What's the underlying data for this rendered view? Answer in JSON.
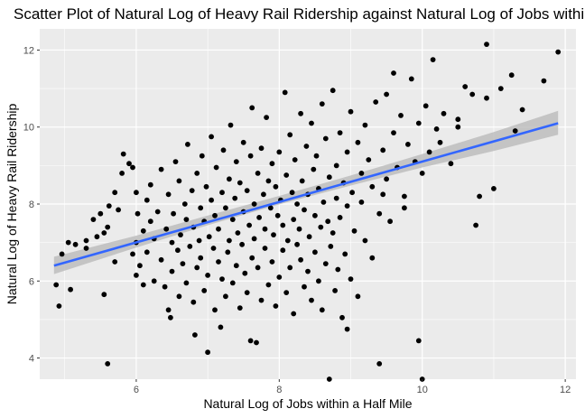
{
  "chart_data": {
    "type": "scatter",
    "title": "Scatter Plot of Natural Log of Heavy Rail Ridership against Natural Log of Jobs within a Half Mile",
    "xlabel": "Natural Log of Jobs within a Half Mile",
    "ylabel": "Natural Log of Heavy Rail Ridership",
    "xlim": [
      4.65,
      12.15
    ],
    "ylim": [
      3.45,
      12.55
    ],
    "xticks": [
      6,
      8,
      10,
      12
    ],
    "yticks": [
      4,
      6,
      8,
      10,
      12
    ],
    "grid": true,
    "legend": "none",
    "colors": {
      "panel": "#ebebeb",
      "grid": "#ffffff",
      "points": "#000000",
      "fit_line": "#3366ff",
      "confidence_band": "#bdbdbd"
    },
    "fit_line": {
      "x": [
        4.85,
        11.9
      ],
      "y": [
        6.4,
        10.1
      ]
    },
    "confidence_band": {
      "x": [
        4.85,
        6.0,
        7.0,
        8.0,
        9.0,
        10.0,
        11.0,
        11.9
      ],
      "lower": [
        6.18,
        6.87,
        7.45,
        7.99,
        8.48,
        8.95,
        9.38,
        9.8
      ],
      "upper": [
        6.63,
        7.18,
        7.7,
        8.21,
        8.74,
        9.3,
        9.87,
        10.42
      ]
    },
    "points": [
      [
        4.88,
        5.9
      ],
      [
        4.92,
        5.35
      ],
      [
        4.96,
        6.7
      ],
      [
        5.05,
        7.0
      ],
      [
        5.08,
        5.78
      ],
      [
        5.15,
        6.95
      ],
      [
        5.3,
        6.85
      ],
      [
        5.3,
        7.05
      ],
      [
        5.4,
        7.6
      ],
      [
        5.45,
        7.15
      ],
      [
        5.5,
        7.75
      ],
      [
        5.55,
        7.25
      ],
      [
        5.55,
        5.65
      ],
      [
        5.6,
        3.85
      ],
      [
        5.6,
        7.4
      ],
      [
        5.62,
        7.95
      ],
      [
        5.7,
        6.5
      ],
      [
        5.7,
        8.3
      ],
      [
        5.75,
        7.85
      ],
      [
        5.8,
        8.8
      ],
      [
        5.82,
        9.3
      ],
      [
        5.9,
        9.05
      ],
      [
        5.95,
        8.95
      ],
      [
        5.95,
        6.7
      ],
      [
        6.0,
        7.0
      ],
      [
        6.0,
        6.15
      ],
      [
        6.0,
        8.3
      ],
      [
        6.02,
        7.75
      ],
      [
        6.05,
        6.4
      ],
      [
        6.1,
        5.9
      ],
      [
        6.1,
        7.3
      ],
      [
        6.15,
        8.1
      ],
      [
        6.15,
        6.75
      ],
      [
        6.2,
        7.55
      ],
      [
        6.2,
        8.5
      ],
      [
        6.25,
        6.0
      ],
      [
        6.25,
        7.1
      ],
      [
        6.3,
        7.8
      ],
      [
        6.35,
        6.55
      ],
      [
        6.35,
        8.9
      ],
      [
        6.4,
        5.85
      ],
      [
        6.42,
        7.35
      ],
      [
        6.45,
        8.25
      ],
      [
        6.45,
        5.25
      ],
      [
        6.48,
        5.05
      ],
      [
        6.5,
        7.0
      ],
      [
        6.5,
        6.25
      ],
      [
        6.52,
        7.75
      ],
      [
        6.55,
        9.1
      ],
      [
        6.58,
        6.8
      ],
      [
        6.6,
        5.6
      ],
      [
        6.6,
        8.6
      ],
      [
        6.62,
        7.2
      ],
      [
        6.65,
        6.45
      ],
      [
        6.68,
        8.0
      ],
      [
        6.7,
        7.6
      ],
      [
        6.7,
        5.95
      ],
      [
        6.72,
        9.55
      ],
      [
        6.75,
        6.9
      ],
      [
        6.78,
        8.35
      ],
      [
        6.8,
        5.45
      ],
      [
        6.8,
        7.4
      ],
      [
        6.82,
        4.6
      ],
      [
        6.85,
        6.35
      ],
      [
        6.85,
        8.8
      ],
      [
        6.88,
        7.05
      ],
      [
        6.9,
        7.9
      ],
      [
        6.9,
        6.6
      ],
      [
        6.92,
        9.25
      ],
      [
        6.95,
        5.75
      ],
      [
        6.95,
        7.55
      ],
      [
        6.98,
        8.45
      ],
      [
        7.0,
        6.15
      ],
      [
        7.0,
        4.15
      ],
      [
        7.02,
        7.15
      ],
      [
        7.05,
        9.75
      ],
      [
        7.05,
        8.1
      ],
      [
        7.08,
        6.85
      ],
      [
        7.1,
        5.25
      ],
      [
        7.1,
        7.7
      ],
      [
        7.12,
        8.95
      ],
      [
        7.15,
        6.5
      ],
      [
        7.15,
        7.35
      ],
      [
        7.18,
        4.8
      ],
      [
        7.2,
        8.3
      ],
      [
        7.2,
        6.05
      ],
      [
        7.22,
        9.4
      ],
      [
        7.25,
        7.9
      ],
      [
        7.25,
        5.6
      ],
      [
        7.28,
        6.75
      ],
      [
        7.3,
        8.65
      ],
      [
        7.3,
        7.05
      ],
      [
        7.32,
        10.05
      ],
      [
        7.35,
        5.95
      ],
      [
        7.35,
        7.6
      ],
      [
        7.38,
        8.15
      ],
      [
        7.4,
        6.4
      ],
      [
        7.4,
        9.1
      ],
      [
        7.42,
        7.25
      ],
      [
        7.45,
        5.3
      ],
      [
        7.45,
        8.55
      ],
      [
        7.48,
        6.95
      ],
      [
        7.5,
        7.8
      ],
      [
        7.5,
        9.6
      ],
      [
        7.52,
        6.2
      ],
      [
        7.55,
        8.35
      ],
      [
        7.55,
        5.7
      ],
      [
        7.58,
        7.45
      ],
      [
        7.6,
        4.45
      ],
      [
        7.6,
        9.25
      ],
      [
        7.62,
        6.6
      ],
      [
        7.62,
        10.5
      ],
      [
        7.65,
        8.0
      ],
      [
        7.65,
        7.1
      ],
      [
        7.68,
        4.4
      ],
      [
        7.7,
        8.8
      ],
      [
        7.7,
        6.35
      ],
      [
        7.72,
        7.65
      ],
      [
        7.75,
        5.5
      ],
      [
        7.75,
        9.45
      ],
      [
        7.78,
        8.25
      ],
      [
        7.8,
        6.85
      ],
      [
        7.8,
        7.35
      ],
      [
        7.82,
        10.25
      ],
      [
        7.85,
        5.9
      ],
      [
        7.85,
        8.6
      ],
      [
        7.88,
        7.9
      ],
      [
        7.9,
        6.5
      ],
      [
        7.9,
        9.05
      ],
      [
        7.92,
        7.2
      ],
      [
        7.95,
        5.35
      ],
      [
        7.95,
        8.45
      ],
      [
        7.98,
        7.7
      ],
      [
        8.0,
        6.1
      ],
      [
        8.0,
        9.35
      ],
      [
        8.02,
        8.1
      ],
      [
        8.05,
        6.8
      ],
      [
        8.05,
        7.45
      ],
      [
        8.08,
        10.9
      ],
      [
        8.1,
        5.7
      ],
      [
        8.1,
        8.75
      ],
      [
        8.12,
        7.05
      ],
      [
        8.15,
        9.8
      ],
      [
        8.15,
        6.35
      ],
      [
        8.18,
        8.3
      ],
      [
        8.2,
        7.6
      ],
      [
        8.2,
        5.15
      ],
      [
        8.22,
        9.15
      ],
      [
        8.25,
        6.95
      ],
      [
        8.25,
        8.0
      ],
      [
        8.28,
        7.35
      ],
      [
        8.3,
        10.35
      ],
      [
        8.3,
        6.55
      ],
      [
        8.32,
        8.6
      ],
      [
        8.35,
        5.85
      ],
      [
        8.35,
        7.85
      ],
      [
        8.38,
        9.5
      ],
      [
        8.4,
        6.25
      ],
      [
        8.4,
        8.25
      ],
      [
        8.42,
        7.15
      ],
      [
        8.45,
        10.1
      ],
      [
        8.45,
        5.5
      ],
      [
        8.48,
        8.9
      ],
      [
        8.5,
        6.75
      ],
      [
        8.5,
        7.7
      ],
      [
        8.52,
        9.25
      ],
      [
        8.55,
        6.0
      ],
      [
        8.55,
        8.4
      ],
      [
        8.58,
        7.4
      ],
      [
        8.6,
        10.6
      ],
      [
        8.6,
        5.25
      ],
      [
        8.62,
        8.05
      ],
      [
        8.65,
        6.45
      ],
      [
        8.65,
        9.7
      ],
      [
        8.68,
        7.55
      ],
      [
        8.7,
        3.45
      ],
      [
        8.7,
        8.7
      ],
      [
        8.72,
        6.9
      ],
      [
        8.75,
        10.95
      ],
      [
        8.75,
        7.25
      ],
      [
        8.78,
        5.75
      ],
      [
        8.8,
        9.0
      ],
      [
        8.8,
        8.15
      ],
      [
        8.82,
        6.3
      ],
      [
        8.85,
        9.85
      ],
      [
        8.85,
        7.65
      ],
      [
        8.88,
        5.05
      ],
      [
        8.9,
        8.55
      ],
      [
        8.92,
        6.7
      ],
      [
        8.95,
        9.35
      ],
      [
        8.95,
        7.95
      ],
      [
        9.0,
        10.4
      ],
      [
        9.0,
        6.05
      ],
      [
        9.02,
        8.3
      ],
      [
        9.05,
        7.3
      ],
      [
        9.1,
        9.6
      ],
      [
        9.1,
        5.6
      ],
      [
        9.15,
        8.8
      ],
      [
        9.2,
        10.05
      ],
      [
        9.2,
        7.05
      ],
      [
        9.25,
        9.15
      ],
      [
        9.3,
        6.6
      ],
      [
        9.3,
        8.45
      ],
      [
        9.35,
        10.65
      ],
      [
        9.4,
        7.75
      ],
      [
        9.4,
        3.85
      ],
      [
        9.45,
        9.4
      ],
      [
        9.5,
        8.65
      ],
      [
        9.5,
        10.85
      ],
      [
        9.55,
        7.55
      ],
      [
        9.6,
        9.85
      ],
      [
        9.6,
        11.4
      ],
      [
        9.65,
        8.95
      ],
      [
        9.7,
        10.3
      ],
      [
        9.75,
        8.2
      ],
      [
        9.8,
        9.55
      ],
      [
        9.85,
        11.25
      ],
      [
        9.9,
        9.1
      ],
      [
        9.95,
        10.1
      ],
      [
        9.95,
        4.45
      ],
      [
        10.0,
        3.45
      ],
      [
        10.0,
        8.8
      ],
      [
        10.05,
        10.55
      ],
      [
        10.1,
        9.35
      ],
      [
        10.15,
        11.75
      ],
      [
        10.2,
        9.95
      ],
      [
        10.3,
        10.35
      ],
      [
        10.4,
        9.05
      ],
      [
        10.5,
        10.2
      ],
      [
        10.6,
        11.05
      ],
      [
        10.7,
        10.85
      ],
      [
        10.75,
        7.45
      ],
      [
        10.8,
        8.2
      ],
      [
        10.9,
        10.75
      ],
      [
        11.0,
        8.4
      ],
      [
        11.1,
        11.0
      ],
      [
        11.25,
        11.35
      ],
      [
        11.3,
        9.9
      ],
      [
        11.4,
        10.45
      ],
      [
        11.7,
        11.2
      ],
      [
        11.9,
        11.95
      ],
      [
        10.9,
        12.15
      ],
      [
        10.5,
        10.0
      ],
      [
        9.75,
        7.9
      ],
      [
        9.45,
        8.25
      ],
      [
        10.25,
        9.6
      ],
      [
        8.95,
        4.75
      ],
      [
        9.15,
        8.05
      ]
    ]
  }
}
